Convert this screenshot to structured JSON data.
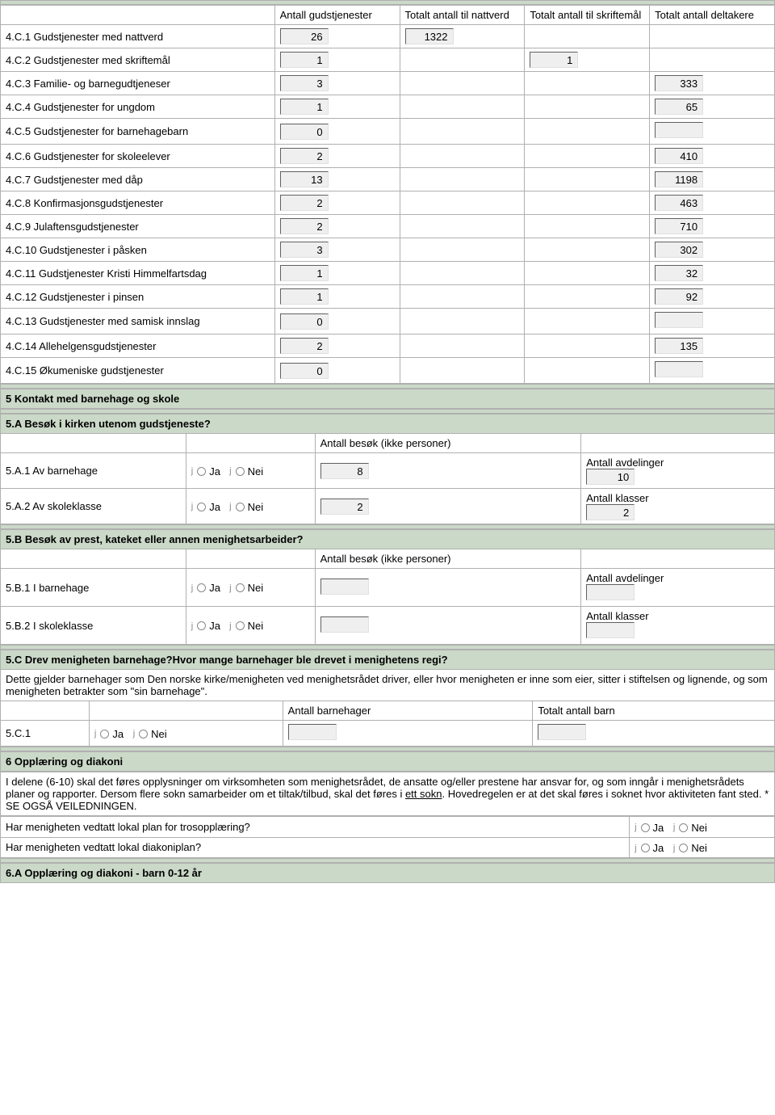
{
  "section4": {
    "headers": {
      "h1": "Antall gudstjenester",
      "h2": "Totalt antall til nattverd",
      "h3": "Totalt antall til skriftemål",
      "h4": "Totalt antall deltakere"
    },
    "rows": [
      {
        "label": "4.C.1 Gudstjenester med nattverd",
        "v1": "26",
        "v2": "1322",
        "v3": "",
        "v4": "",
        "show2": true,
        "show3": false,
        "show4": false
      },
      {
        "label": "4.C.2 Gudstjenester med skriftemål",
        "v1": "1",
        "v2": "",
        "v3": "1",
        "v4": "",
        "show2": false,
        "show3": true,
        "show4": false
      },
      {
        "label": "4.C.3 Familie- og barnegudtjeneser",
        "v1": "3",
        "v2": "",
        "v3": "",
        "v4": "333",
        "show2": false,
        "show3": false,
        "show4": true
      },
      {
        "label": "4.C.4 Gudstjenester for ungdom",
        "v1": "1",
        "v2": "",
        "v3": "",
        "v4": "65",
        "show2": false,
        "show3": false,
        "show4": true
      },
      {
        "label": "4.C.5 Gudstjenester for barnehagebarn",
        "v1": "0",
        "v2": "",
        "v3": "",
        "v4": "",
        "show2": false,
        "show3": false,
        "show4": true
      },
      {
        "label": "4.C.6 Gudstjenester for skoleelever",
        "v1": "2",
        "v2": "",
        "v3": "",
        "v4": "410",
        "show2": false,
        "show3": false,
        "show4": true
      },
      {
        "label": "4.C.7 Gudstjenester med dåp",
        "v1": "13",
        "v2": "",
        "v3": "",
        "v4": "1198",
        "show2": false,
        "show3": false,
        "show4": true
      },
      {
        "label": "4.C.8 Konfirmasjonsgudstjenester",
        "v1": "2",
        "v2": "",
        "v3": "",
        "v4": "463",
        "show2": false,
        "show3": false,
        "show4": true
      },
      {
        "label": "4.C.9 Julaftensgudstjenester",
        "v1": "2",
        "v2": "",
        "v3": "",
        "v4": "710",
        "show2": false,
        "show3": false,
        "show4": true
      },
      {
        "label": "4.C.10 Gudstjenester i påsken",
        "v1": "3",
        "v2": "",
        "v3": "",
        "v4": "302",
        "show2": false,
        "show3": false,
        "show4": true
      },
      {
        "label": "4.C.11 Gudstjenester Kristi Himmelfartsdag",
        "v1": "1",
        "v2": "",
        "v3": "",
        "v4": "32",
        "show2": false,
        "show3": false,
        "show4": true
      },
      {
        "label": "4.C.12 Gudstjenester i pinsen",
        "v1": "1",
        "v2": "",
        "v3": "",
        "v4": "92",
        "show2": false,
        "show3": false,
        "show4": true
      },
      {
        "label": "4.C.13 Gudstjenester med samisk innslag",
        "v1": "0",
        "v2": "",
        "v3": "",
        "v4": "",
        "show2": false,
        "show3": false,
        "show4": true
      },
      {
        "label": "4.C.14 Allehelgensgudstjenester",
        "v1": "2",
        "v2": "",
        "v3": "",
        "v4": "135",
        "show2": false,
        "show3": false,
        "show4": true
      },
      {
        "label": "4.C.15 Økumeniske gudstjenester",
        "v1": "0",
        "v2": "",
        "v3": "",
        "v4": "",
        "show2": false,
        "show3": false,
        "show4": true
      }
    ]
  },
  "section5": {
    "title": "5 Kontakt med barnehage og skole",
    "a": {
      "title": "5.A Besøk i kirken utenom gudstjeneste?",
      "col_visits": "Antall besøk (ikke personer)",
      "rows": [
        {
          "label": "5.A.1 Av barnehage",
          "visits": "8",
          "extra_label": "Antall avdelinger",
          "extra_value": "10"
        },
        {
          "label": "5.A.2 Av skoleklasse",
          "visits": "2",
          "extra_label": "Antall klasser",
          "extra_value": "2"
        }
      ]
    },
    "b": {
      "title": "5.B Besøk av prest, kateket eller annen menighetsarbeider?",
      "col_visits": "Antall besøk (ikke personer)",
      "rows": [
        {
          "label": "5.B.1 I barnehage",
          "visits": "",
          "extra_label": "Antall avdelinger",
          "extra_value": ""
        },
        {
          "label": "5.B.2 I skoleklasse",
          "visits": "",
          "extra_label": "Antall klasser",
          "extra_value": ""
        }
      ]
    },
    "c": {
      "title": "5.C Drev menigheten barnehage?Hvor mange barnehager ble drevet i menighetens regi?",
      "note": "Dette gjelder barnehager som Den norske kirke/menigheten ved menighetsrådet driver, eller hvor menigheten er inne som eier, sitter i stiftelsen og lignende, og som menigheten betrakter som \"sin barnehage\".",
      "col1": "Antall barnehager",
      "col2": "Totalt antall barn",
      "row_label": "5.C.1"
    }
  },
  "radio": {
    "yes": "Ja",
    "no": "Nei"
  },
  "section6": {
    "title": "6 Opplæring og diakoni",
    "note_pre": "I delene (6-10) skal det føres opplysninger om virksomheten som menighetsrådet, de ansatte og/eller prestene har ansvar for, og som inngår i menighetsrådets planer og rapporter. Dersom flere sokn samarbeider om et tiltak/tilbud, skal det føres i ",
    "note_u": "ett sokn",
    "note_post": ". Hovedregelen er at det skal føres i soknet hvor aktiviteten fant sted. * SE OGSÅ VEILEDNINGEN.",
    "q1": "Har menigheten vedtatt lokal plan for trosopplæring?",
    "q2": "Har menigheten vedtatt lokal diakoniplan?",
    "a_title": "6.A Opplæring og diakoni - barn 0-12 år"
  }
}
